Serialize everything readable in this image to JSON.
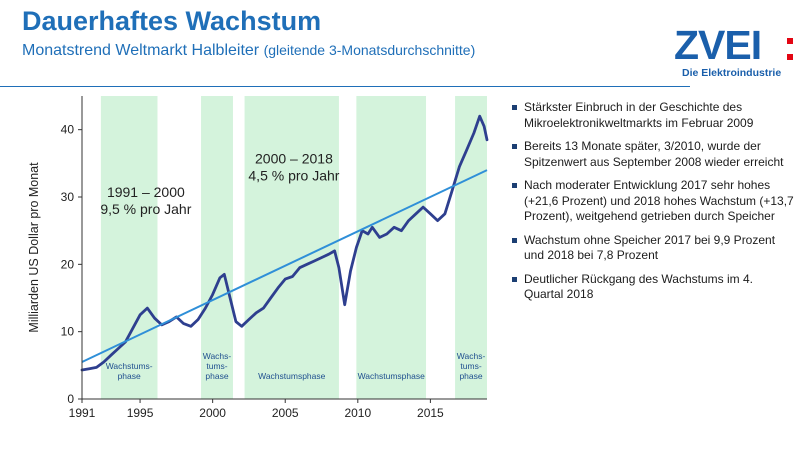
{
  "header": {
    "title": "Dauerhaftes Wachstum",
    "subtitle": "Monatstrend Weltmarkt Halbleiter",
    "subtitle_note": "(gleitende 3-Monatsdurchschnitte)"
  },
  "logo": {
    "text": "ZVEI",
    "tagline": "Die Elektroindustrie"
  },
  "bullets": [
    "Stärkster Einbruch in der Geschichte des Mikroelektronikweltmarkts im Februar 2009",
    "Bereits 13 Monate später, 3/2010, wurde der Spitzenwert aus September 2008 wieder erreicht",
    "Nach moderater Entwicklung 2017 sehr hohes (+21,6 Prozent) und 2018 hohes Wachstum (+13,7 Prozent), weitgehend getrieben durch Speicher",
    "Wachstum ohne Speicher 2017 bei 9,9 Prozent und 2018 bei 7,8 Prozent",
    "Deutlicher Rückgang des Wachstums im 4. Quartal 2018"
  ],
  "colors": {
    "brand": "#1f6fb8",
    "band": "#d4f3dc",
    "line": "#2e3f8f",
    "trend": "#2f8fd8",
    "logo_accent": "#e30613"
  },
  "chart_data": {
    "type": "line",
    "ylabel": "Milliarden US Dollar pro Monat",
    "xlabel": "",
    "xlim": [
      1991,
      2018.9
    ],
    "ylim": [
      0,
      45
    ],
    "xticks": [
      1991,
      1995,
      2000,
      2005,
      2010,
      2015
    ],
    "yticks": [
      0,
      10,
      20,
      30,
      40
    ],
    "grid": false,
    "bands": [
      {
        "from": 1992.3,
        "to": 1996.2,
        "label": "Wachstums-\nphase"
      },
      {
        "from": 1999.2,
        "to": 2001.4,
        "label": "Wachs-\ntums-\nphase"
      },
      {
        "from": 2002.2,
        "to": 2008.7,
        "label": "Wachstumsphase"
      },
      {
        "from": 2009.9,
        "to": 2014.7,
        "label": "Wachstumsphase"
      },
      {
        "from": 2016.7,
        "to": 2018.9,
        "label": "Wachs-\ntums-\nphase"
      }
    ],
    "annotations": [
      {
        "text": "1991 – 2000\n9,5 % pro Jahr",
        "x": 1995.4,
        "y": 30
      },
      {
        "text": "2000 – 2018\n4,5 % pro Jahr",
        "x": 2005.6,
        "y": 35
      }
    ],
    "series": [
      {
        "x": [
          1991.0,
          1991.5,
          1992.0,
          1992.5,
          1993.0,
          1993.5,
          1994.0,
          1994.5,
          1995.0,
          1995.5,
          1996.0,
          1996.5,
          1997.0,
          1997.5,
          1998.0,
          1998.5,
          1999.0,
          1999.5,
          2000.0,
          2000.5,
          2000.8,
          2001.2,
          2001.6,
          2002.0,
          2002.5,
          2003.0,
          2003.5,
          2004.0,
          2004.5,
          2005.0,
          2005.5,
          2006.0,
          2006.5,
          2007.0,
          2007.5,
          2008.0,
          2008.4,
          2008.7,
          2009.1,
          2009.5,
          2009.9,
          2010.3,
          2010.7,
          2011.0,
          2011.5,
          2012.0,
          2012.5,
          2013.0,
          2013.5,
          2014.0,
          2014.5,
          2015.0,
          2015.5,
          2016.0,
          2016.5,
          2017.0,
          2017.5,
          2018.0,
          2018.4,
          2018.7,
          2018.9
        ],
        "values": [
          4.3,
          4.5,
          4.7,
          5.5,
          6.5,
          7.5,
          8.5,
          10.5,
          12.5,
          13.5,
          12.0,
          11.0,
          11.5,
          12.2,
          11.2,
          10.8,
          11.8,
          13.5,
          15.5,
          18.0,
          18.5,
          15.0,
          11.5,
          10.8,
          11.8,
          12.8,
          13.5,
          15.0,
          16.5,
          17.8,
          18.2,
          19.5,
          20.0,
          20.5,
          21.0,
          21.5,
          22.0,
          19.5,
          14.0,
          19.0,
          22.5,
          25.0,
          24.5,
          25.5,
          24.0,
          24.5,
          25.5,
          25.0,
          26.5,
          27.5,
          28.5,
          27.5,
          26.5,
          27.5,
          31.0,
          34.5,
          37.0,
          39.5,
          42.0,
          40.5,
          38.5
        ]
      },
      {
        "name": "Trend",
        "x": [
          1991.0,
          2018.9
        ],
        "values": [
          5.5,
          34.0
        ]
      }
    ]
  }
}
